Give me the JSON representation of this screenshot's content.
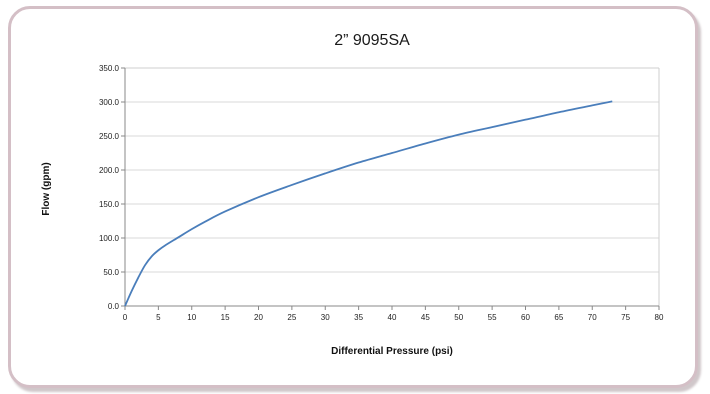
{
  "chart_data": {
    "type": "line",
    "title": "2” 9095SA",
    "xlabel": "Differential Pressure (psi)",
    "ylabel": "Flow (gpm)",
    "xlim": [
      0,
      80
    ],
    "ylim": [
      0,
      350
    ],
    "x_ticks": [
      "0",
      "5",
      "10",
      "15",
      "20",
      "25",
      "30",
      "35",
      "40",
      "45",
      "50",
      "55",
      "60",
      "65",
      "70",
      "75",
      "80"
    ],
    "y_ticks": [
      "0.0",
      "50.0",
      "100.0",
      "150.0",
      "200.0",
      "250.0",
      "300.0",
      "350.0"
    ],
    "grid": "horizontal",
    "legend": "none",
    "line_color": "#4a7ebb",
    "series": [
      {
        "x": [
          0,
          1,
          2,
          3,
          4,
          5,
          6,
          8,
          10,
          12,
          15,
          20,
          25,
          30,
          35,
          40,
          45,
          50,
          55,
          60,
          65,
          70,
          73
        ],
        "values": [
          0,
          22,
          42,
          60,
          73,
          82,
          89,
          101,
          113,
          124,
          139,
          160,
          178,
          195,
          211,
          225,
          239,
          252,
          263,
          274,
          285,
          295,
          301
        ]
      }
    ]
  }
}
